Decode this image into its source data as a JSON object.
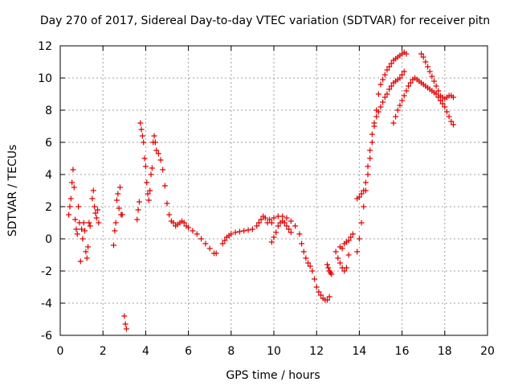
{
  "chart_data": {
    "type": "scatter",
    "title": "Day 270 of 2017, Sidereal Day-to-day VTEC variation (SDTVAR) for receiver pitn",
    "xlabel": "GPS time / hours",
    "ylabel": "SDTVAR / TECUs",
    "xlim": [
      0,
      20
    ],
    "ylim": [
      -6,
      12
    ],
    "x_ticks": [
      0,
      2,
      4,
      6,
      8,
      10,
      12,
      14,
      16,
      18,
      20
    ],
    "y_ticks": [
      -6,
      -4,
      -2,
      0,
      2,
      4,
      6,
      8,
      10,
      12
    ],
    "x_tick_labels": [
      "0",
      "2",
      "4",
      "6",
      "8",
      "10",
      "12",
      "14",
      "16",
      "18",
      "20"
    ],
    "y_tick_labels": [
      "-6",
      "-4",
      "-2",
      "0",
      "2",
      "4",
      "6",
      "8",
      "10",
      "12"
    ],
    "grid": true,
    "marker": "+",
    "marker_color": "#e00000",
    "series": [
      {
        "name": "SDTVAR",
        "points": [
          [
            0.4,
            1.5
          ],
          [
            0.45,
            2.0
          ],
          [
            0.5,
            2.5
          ],
          [
            0.55,
            3.5
          ],
          [
            0.6,
            4.3
          ],
          [
            0.65,
            3.2
          ],
          [
            0.7,
            1.2
          ],
          [
            0.75,
            0.6
          ],
          [
            0.8,
            0.3
          ],
          [
            0.85,
            2.0
          ],
          [
            0.9,
            1.0
          ],
          [
            0.95,
            -1.4
          ],
          [
            1.0,
            0.6
          ],
          [
            1.05,
            0.0
          ],
          [
            1.1,
            1.0
          ],
          [
            1.15,
            0.5
          ],
          [
            1.2,
            -0.8
          ],
          [
            1.25,
            -1.2
          ],
          [
            1.3,
            -0.5
          ],
          [
            1.35,
            1.0
          ],
          [
            1.4,
            0.8
          ],
          [
            1.5,
            2.5
          ],
          [
            1.55,
            3.0
          ],
          [
            1.6,
            2.0
          ],
          [
            1.65,
            1.6
          ],
          [
            1.7,
            1.3
          ],
          [
            1.75,
            1.8
          ],
          [
            1.8,
            1.0
          ],
          [
            2.5,
            -0.4
          ],
          [
            2.55,
            0.5
          ],
          [
            2.6,
            1.0
          ],
          [
            2.65,
            2.4
          ],
          [
            2.7,
            2.8
          ],
          [
            2.75,
            1.9
          ],
          [
            2.8,
            3.2
          ],
          [
            2.85,
            1.5
          ],
          [
            2.9,
            1.5
          ],
          [
            3.0,
            -4.8
          ],
          [
            3.05,
            -5.3
          ],
          [
            3.1,
            -5.6
          ],
          [
            3.6,
            1.2
          ],
          [
            3.65,
            1.8
          ],
          [
            3.7,
            2.3
          ],
          [
            3.75,
            7.2
          ],
          [
            3.8,
            6.8
          ],
          [
            3.85,
            6.4
          ],
          [
            3.9,
            6.0
          ],
          [
            3.95,
            5.0
          ],
          [
            4.0,
            4.5
          ],
          [
            4.05,
            3.5
          ],
          [
            4.1,
            2.8
          ],
          [
            4.15,
            2.4
          ],
          [
            4.2,
            3.0
          ],
          [
            4.25,
            4.0
          ],
          [
            4.3,
            4.4
          ],
          [
            4.35,
            6.0
          ],
          [
            4.4,
            6.4
          ],
          [
            4.45,
            6.0
          ],
          [
            4.5,
            5.5
          ],
          [
            4.6,
            5.3
          ],
          [
            4.7,
            4.9
          ],
          [
            4.8,
            4.3
          ],
          [
            4.9,
            3.3
          ],
          [
            5.0,
            2.2
          ],
          [
            5.1,
            1.5
          ],
          [
            5.2,
            1.1
          ],
          [
            5.3,
            1.0
          ],
          [
            5.4,
            0.8
          ],
          [
            5.5,
            0.9
          ],
          [
            5.6,
            1.0
          ],
          [
            5.7,
            1.1
          ],
          [
            5.8,
            1.0
          ],
          [
            5.9,
            0.8
          ],
          [
            6.0,
            0.7
          ],
          [
            6.2,
            0.5
          ],
          [
            6.4,
            0.3
          ],
          [
            6.6,
            0.0
          ],
          [
            6.8,
            -0.3
          ],
          [
            7.0,
            -0.6
          ],
          [
            7.2,
            -0.9
          ],
          [
            7.3,
            -0.9
          ],
          [
            7.6,
            -0.3
          ],
          [
            7.7,
            -0.1
          ],
          [
            7.8,
            0.1
          ],
          [
            7.9,
            0.2
          ],
          [
            8.0,
            0.3
          ],
          [
            8.2,
            0.4
          ],
          [
            8.4,
            0.45
          ],
          [
            8.6,
            0.5
          ],
          [
            8.8,
            0.55
          ],
          [
            9.0,
            0.6
          ],
          [
            9.2,
            0.8
          ],
          [
            9.3,
            1.0
          ],
          [
            9.4,
            1.2
          ],
          [
            9.5,
            1.4
          ],
          [
            9.6,
            1.3
          ],
          [
            9.7,
            1.0
          ],
          [
            9.8,
            1.2
          ],
          [
            9.9,
            1.0
          ],
          [
            9.9,
            -0.2
          ],
          [
            10.0,
            0.1
          ],
          [
            10.1,
            0.4
          ],
          [
            10.2,
            0.8
          ],
          [
            10.3,
            1.0
          ],
          [
            10.4,
            1.1
          ],
          [
            10.5,
            1.0
          ],
          [
            10.6,
            0.8
          ],
          [
            10.7,
            0.6
          ],
          [
            10.8,
            0.4
          ],
          [
            10.0,
            1.3
          ],
          [
            10.2,
            1.4
          ],
          [
            10.4,
            1.4
          ],
          [
            10.6,
            1.3
          ],
          [
            10.8,
            1.1
          ],
          [
            11.0,
            0.8
          ],
          [
            11.2,
            0.3
          ],
          [
            11.3,
            -0.3
          ],
          [
            11.4,
            -0.8
          ],
          [
            11.5,
            -1.2
          ],
          [
            11.6,
            -1.5
          ],
          [
            11.7,
            -1.7
          ],
          [
            11.8,
            -2.0
          ],
          [
            11.9,
            -2.5
          ],
          [
            12.0,
            -3.0
          ],
          [
            12.1,
            -3.3
          ],
          [
            12.2,
            -3.5
          ],
          [
            12.3,
            -3.7
          ],
          [
            12.4,
            -3.8
          ],
          [
            12.5,
            -3.8
          ],
          [
            12.6,
            -3.6
          ],
          [
            12.5,
            -1.6
          ],
          [
            12.55,
            -1.8
          ],
          [
            12.6,
            -2.0
          ],
          [
            12.65,
            -2.1
          ],
          [
            12.7,
            -2.2
          ],
          [
            12.9,
            -0.8
          ],
          [
            13.0,
            -1.2
          ],
          [
            13.1,
            -1.5
          ],
          [
            13.2,
            -1.8
          ],
          [
            13.3,
            -2.0
          ],
          [
            13.4,
            -1.8
          ],
          [
            13.5,
            -1.0
          ],
          [
            13.1,
            -0.5
          ],
          [
            13.2,
            -0.6
          ],
          [
            13.3,
            -0.3
          ],
          [
            13.4,
            -0.2
          ],
          [
            13.5,
            -0.1
          ],
          [
            13.6,
            0.1
          ],
          [
            13.7,
            0.3
          ],
          [
            13.9,
            -0.8
          ],
          [
            14.0,
            0.0
          ],
          [
            14.1,
            1.0
          ],
          [
            14.2,
            2.0
          ],
          [
            14.3,
            3.0
          ],
          [
            14.4,
            4.0
          ],
          [
            14.5,
            5.0
          ],
          [
            14.6,
            6.0
          ],
          [
            14.7,
            7.0
          ],
          [
            14.8,
            8.0
          ],
          [
            14.9,
            9.0
          ],
          [
            15.0,
            9.6
          ],
          [
            15.1,
            9.9
          ],
          [
            15.2,
            10.2
          ],
          [
            15.3,
            10.5
          ],
          [
            15.4,
            10.7
          ],
          [
            15.5,
            10.9
          ],
          [
            15.6,
            11.1
          ],
          [
            15.7,
            11.2
          ],
          [
            15.8,
            11.3
          ],
          [
            15.9,
            11.4
          ],
          [
            16.0,
            11.5
          ],
          [
            16.1,
            11.6
          ],
          [
            16.2,
            11.5
          ],
          [
            13.9,
            2.5
          ],
          [
            14.0,
            2.6
          ],
          [
            14.1,
            2.8
          ],
          [
            14.2,
            3.0
          ],
          [
            14.3,
            3.5
          ],
          [
            14.4,
            4.5
          ],
          [
            14.5,
            5.5
          ],
          [
            14.6,
            6.5
          ],
          [
            14.7,
            7.2
          ],
          [
            14.8,
            7.6
          ],
          [
            14.9,
            7.9
          ],
          [
            15.0,
            8.2
          ],
          [
            15.1,
            8.5
          ],
          [
            15.2,
            8.8
          ],
          [
            15.3,
            9.0
          ],
          [
            15.4,
            9.3
          ],
          [
            15.5,
            9.5
          ],
          [
            15.6,
            9.7
          ],
          [
            15.7,
            9.8
          ],
          [
            15.8,
            9.9
          ],
          [
            15.9,
            10.0
          ],
          [
            16.0,
            10.2
          ],
          [
            16.1,
            10.4
          ],
          [
            15.6,
            7.2
          ],
          [
            15.7,
            7.6
          ],
          [
            15.8,
            8.0
          ],
          [
            15.9,
            8.3
          ],
          [
            16.0,
            8.6
          ],
          [
            16.1,
            8.9
          ],
          [
            16.2,
            9.2
          ],
          [
            16.3,
            9.5
          ],
          [
            16.4,
            9.7
          ],
          [
            16.5,
            9.9
          ],
          [
            16.6,
            10.0
          ],
          [
            16.7,
            9.9
          ],
          [
            16.8,
            9.8
          ],
          [
            16.9,
            9.7
          ],
          [
            17.0,
            9.6
          ],
          [
            17.1,
            9.5
          ],
          [
            17.2,
            9.4
          ],
          [
            17.3,
            9.3
          ],
          [
            17.4,
            9.2
          ],
          [
            17.5,
            9.1
          ],
          [
            17.6,
            9.0
          ],
          [
            17.7,
            8.8
          ],
          [
            17.8,
            8.6
          ],
          [
            17.9,
            8.4
          ],
          [
            18.0,
            8.2
          ],
          [
            18.1,
            7.9
          ],
          [
            18.2,
            7.6
          ],
          [
            18.3,
            7.3
          ],
          [
            18.4,
            7.1
          ],
          [
            16.9,
            11.5
          ],
          [
            17.0,
            11.3
          ],
          [
            17.1,
            11.0
          ],
          [
            17.2,
            10.7
          ],
          [
            17.3,
            10.4
          ],
          [
            17.4,
            10.1
          ],
          [
            17.5,
            9.8
          ],
          [
            17.6,
            9.5
          ],
          [
            17.7,
            9.2
          ],
          [
            17.8,
            8.9
          ],
          [
            17.9,
            8.8
          ],
          [
            18.0,
            8.7
          ],
          [
            18.1,
            8.8
          ],
          [
            18.2,
            8.9
          ],
          [
            18.3,
            8.9
          ],
          [
            18.4,
            8.8
          ]
        ]
      }
    ]
  }
}
